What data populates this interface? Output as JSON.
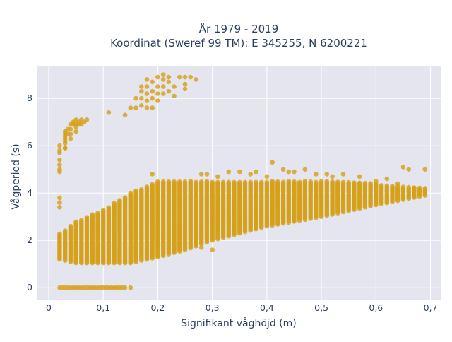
{
  "chart_data": {
    "type": "scatter",
    "title_line1": "År 1979 - 2019",
    "title_line2": "Koordinat (Sweref 99 TM): E 345255, N 6200221",
    "xlabel": "Signifikant våghöjd (m)",
    "ylabel": "Vågperiod (s)",
    "xlim": [
      -0.022,
      0.72
    ],
    "ylim": [
      -0.5,
      9.35
    ],
    "x_ticks": [
      0,
      0.1,
      0.2,
      0.3,
      0.4,
      0.5,
      0.6,
      0.7
    ],
    "x_tick_labels": [
      "0",
      "0,1",
      "0,2",
      "0,3",
      "0,4",
      "0,5",
      "0,6",
      "0,7"
    ],
    "y_ticks": [
      0,
      2,
      4,
      6,
      8
    ],
    "y_tick_labels": [
      "0",
      "2",
      "4",
      "6",
      "8"
    ],
    "grid": true,
    "marker_color": "#d4a017",
    "plot_bgcolor": "#e5e5ef",
    "main_band": {
      "x_start": 0.02,
      "x_end": 0.69,
      "x_step": 0.01,
      "low": [
        [
          0.02,
          1.2
        ],
        [
          0.05,
          1.05
        ],
        [
          0.1,
          1.05
        ],
        [
          0.15,
          1.05
        ],
        [
          0.2,
          1.3
        ],
        [
          0.25,
          1.6
        ],
        [
          0.3,
          2.0
        ],
        [
          0.4,
          2.6
        ],
        [
          0.5,
          3.0
        ],
        [
          0.6,
          3.5
        ],
        [
          0.69,
          3.9
        ]
      ],
      "high": [
        [
          0.02,
          2.3
        ],
        [
          0.05,
          2.8
        ],
        [
          0.1,
          3.3
        ],
        [
          0.15,
          4.0
        ],
        [
          0.2,
          4.5
        ],
        [
          0.3,
          4.5
        ],
        [
          0.4,
          4.5
        ],
        [
          0.5,
          4.5
        ],
        [
          0.6,
          4.4
        ],
        [
          0.69,
          4.2
        ]
      ]
    },
    "near_zero_series": {
      "x": [
        0.02,
        0.025,
        0.03,
        0.035,
        0.04,
        0.045,
        0.05,
        0.055,
        0.06,
        0.065,
        0.07,
        0.075,
        0.08,
        0.085,
        0.09,
        0.095,
        0.1,
        0.105,
        0.11,
        0.115,
        0.12,
        0.125,
        0.13,
        0.135,
        0.14,
        0.15
      ],
      "y": [
        0,
        0,
        0,
        0,
        0,
        0,
        0,
        0,
        0,
        0,
        0,
        0,
        0,
        0,
        0,
        0,
        0,
        0,
        0,
        0,
        0,
        0,
        0,
        0,
        0,
        0
      ]
    },
    "swell_cluster_low": {
      "x": [
        0.02,
        0.02,
        0.02,
        0.02,
        0.02,
        0.02,
        0.02,
        0.02,
        0.02,
        0.02,
        0.03,
        0.03,
        0.03,
        0.03,
        0.03,
        0.03,
        0.03,
        0.03,
        0.035,
        0.035,
        0.04,
        0.04,
        0.04,
        0.04,
        0.045,
        0.045,
        0.05,
        0.05,
        0.05,
        0.05,
        0.055,
        0.055,
        0.06,
        0.06,
        0.065,
        0.07
      ],
      "y": [
        5.0,
        5.2,
        5.4,
        5.7,
        6.0,
        4.9,
        3.4,
        3.6,
        3.8,
        5.8,
        5.9,
        6.1,
        6.3,
        6.5,
        6.6,
        6.4,
        6.2,
        5.9,
        6.5,
        6.7,
        6.5,
        6.7,
        6.9,
        6.3,
        6.9,
        7.0,
        6.8,
        6.9,
        7.1,
        6.6,
        7.0,
        6.9,
        7.1,
        6.9,
        7.0,
        7.1
      ]
    },
    "swell_cluster_high": {
      "x": [
        0.11,
        0.14,
        0.15,
        0.16,
        0.16,
        0.17,
        0.17,
        0.17,
        0.17,
        0.18,
        0.18,
        0.18,
        0.18,
        0.18,
        0.19,
        0.19,
        0.19,
        0.19,
        0.2,
        0.2,
        0.2,
        0.2,
        0.21,
        0.21,
        0.21,
        0.21,
        0.22,
        0.22,
        0.22,
        0.23,
        0.23,
        0.24,
        0.25,
        0.25,
        0.25,
        0.26,
        0.27
      ],
      "y": [
        7.4,
        7.3,
        7.6,
        7.6,
        8.0,
        7.7,
        8.0,
        8.3,
        8.5,
        7.6,
        7.9,
        8.2,
        8.5,
        8.8,
        7.6,
        8.0,
        8.3,
        8.7,
        7.9,
        8.2,
        8.5,
        8.9,
        8.2,
        8.5,
        8.8,
        9.0,
        8.3,
        8.7,
        8.9,
        8.1,
        8.5,
        8.9,
        8.4,
        8.6,
        8.9,
        8.9,
        8.8
      ]
    },
    "main_band_outliers": {
      "x": [
        0.19,
        0.28,
        0.29,
        0.31,
        0.33,
        0.37,
        0.38,
        0.4,
        0.41,
        0.43,
        0.44,
        0.47,
        0.49,
        0.51,
        0.54,
        0.57,
        0.62,
        0.64,
        0.65,
        0.66,
        0.67,
        0.69,
        0.3,
        0.28,
        0.35,
        0.45,
        0.52,
        0.6
      ],
      "y": [
        4.8,
        4.8,
        4.8,
        4.7,
        4.9,
        4.8,
        4.9,
        4.7,
        5.3,
        5.0,
        4.9,
        5.0,
        4.8,
        4.8,
        4.8,
        4.7,
        4.6,
        4.4,
        5.1,
        5.0,
        4.2,
        5.0,
        1.6,
        1.7,
        4.9,
        4.9,
        4.7,
        4.5
      ]
    }
  }
}
